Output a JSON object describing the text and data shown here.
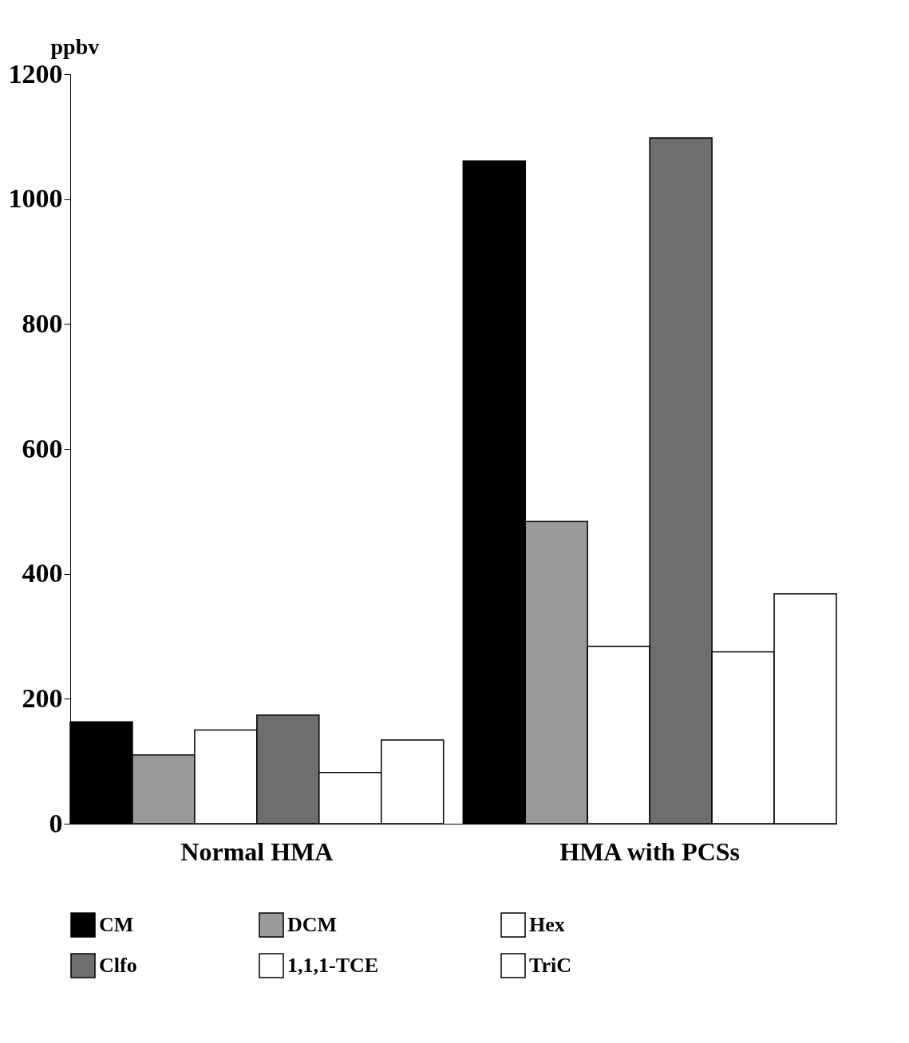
{
  "chart_data": {
    "type": "bar",
    "ylabel": "ppbv",
    "categories": [
      "Normal HMA",
      "HMA with PCSs"
    ],
    "series": [
      {
        "name": "CM",
        "color": "#000000",
        "values": [
          163,
          1061
        ]
      },
      {
        "name": "DCM",
        "color": "#9a9a9a",
        "values": [
          110,
          484
        ]
      },
      {
        "name": "Hex",
        "color": "#ffffff",
        "values": [
          150,
          284
        ]
      },
      {
        "name": "Clfo",
        "color": "#6e6e6e",
        "values": [
          174,
          1098
        ]
      },
      {
        "name": "1,1,1-TCE",
        "color": "#ffffff",
        "values": [
          82,
          275
        ]
      },
      {
        "name": "TriC",
        "color": "#ffffff",
        "values": [
          134,
          368
        ]
      }
    ],
    "ylim": [
      0,
      1200
    ],
    "yticks": [
      0,
      200,
      400,
      600,
      800,
      1000,
      1200
    ],
    "grid": false,
    "legend": "bottom"
  }
}
